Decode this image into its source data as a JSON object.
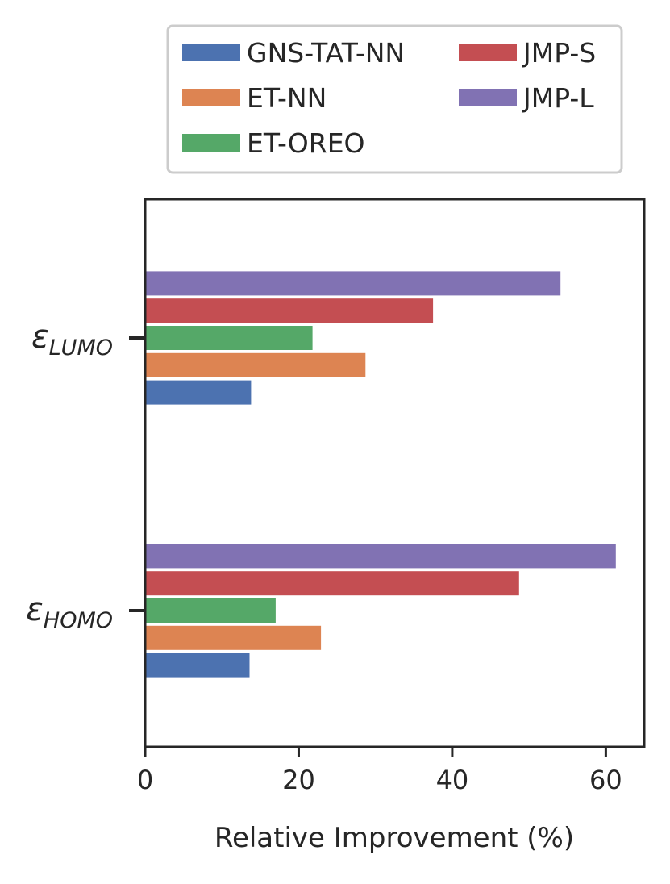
{
  "chart_data": {
    "type": "bar",
    "orientation": "horizontal",
    "xlabel": "Relative Improvement (%)",
    "ylabel": "",
    "xlim": [
      0,
      65
    ],
    "xticks": [
      0,
      20,
      40,
      60
    ],
    "grid": false,
    "legend_placement": "top-outside",
    "categories": [
      {
        "base": "ε",
        "sub": "LUMO"
      },
      {
        "base": "ε",
        "sub": "HOMO"
      }
    ],
    "series": [
      {
        "name": "GNS-TAT-NN",
        "color": "#4c72b0",
        "values": [
          13.8,
          13.6
        ]
      },
      {
        "name": "ET-NN",
        "color": "#dd8452",
        "values": [
          28.7,
          22.9
        ]
      },
      {
        "name": "ET-OREO",
        "color": "#55a868",
        "values": [
          21.8,
          17.0
        ]
      },
      {
        "name": "JMP-S",
        "color": "#c44e52",
        "values": [
          37.5,
          48.7
        ]
      },
      {
        "name": "JMP-L",
        "color": "#8172b3",
        "values": [
          54.1,
          61.3
        ]
      }
    ],
    "legend_layout": [
      {
        "series": 0,
        "col": 0,
        "row": 0
      },
      {
        "series": 1,
        "col": 0,
        "row": 1
      },
      {
        "series": 2,
        "col": 0,
        "row": 2
      },
      {
        "series": 3,
        "col": 1,
        "row": 0
      },
      {
        "series": 4,
        "col": 1,
        "row": 1
      }
    ]
  }
}
